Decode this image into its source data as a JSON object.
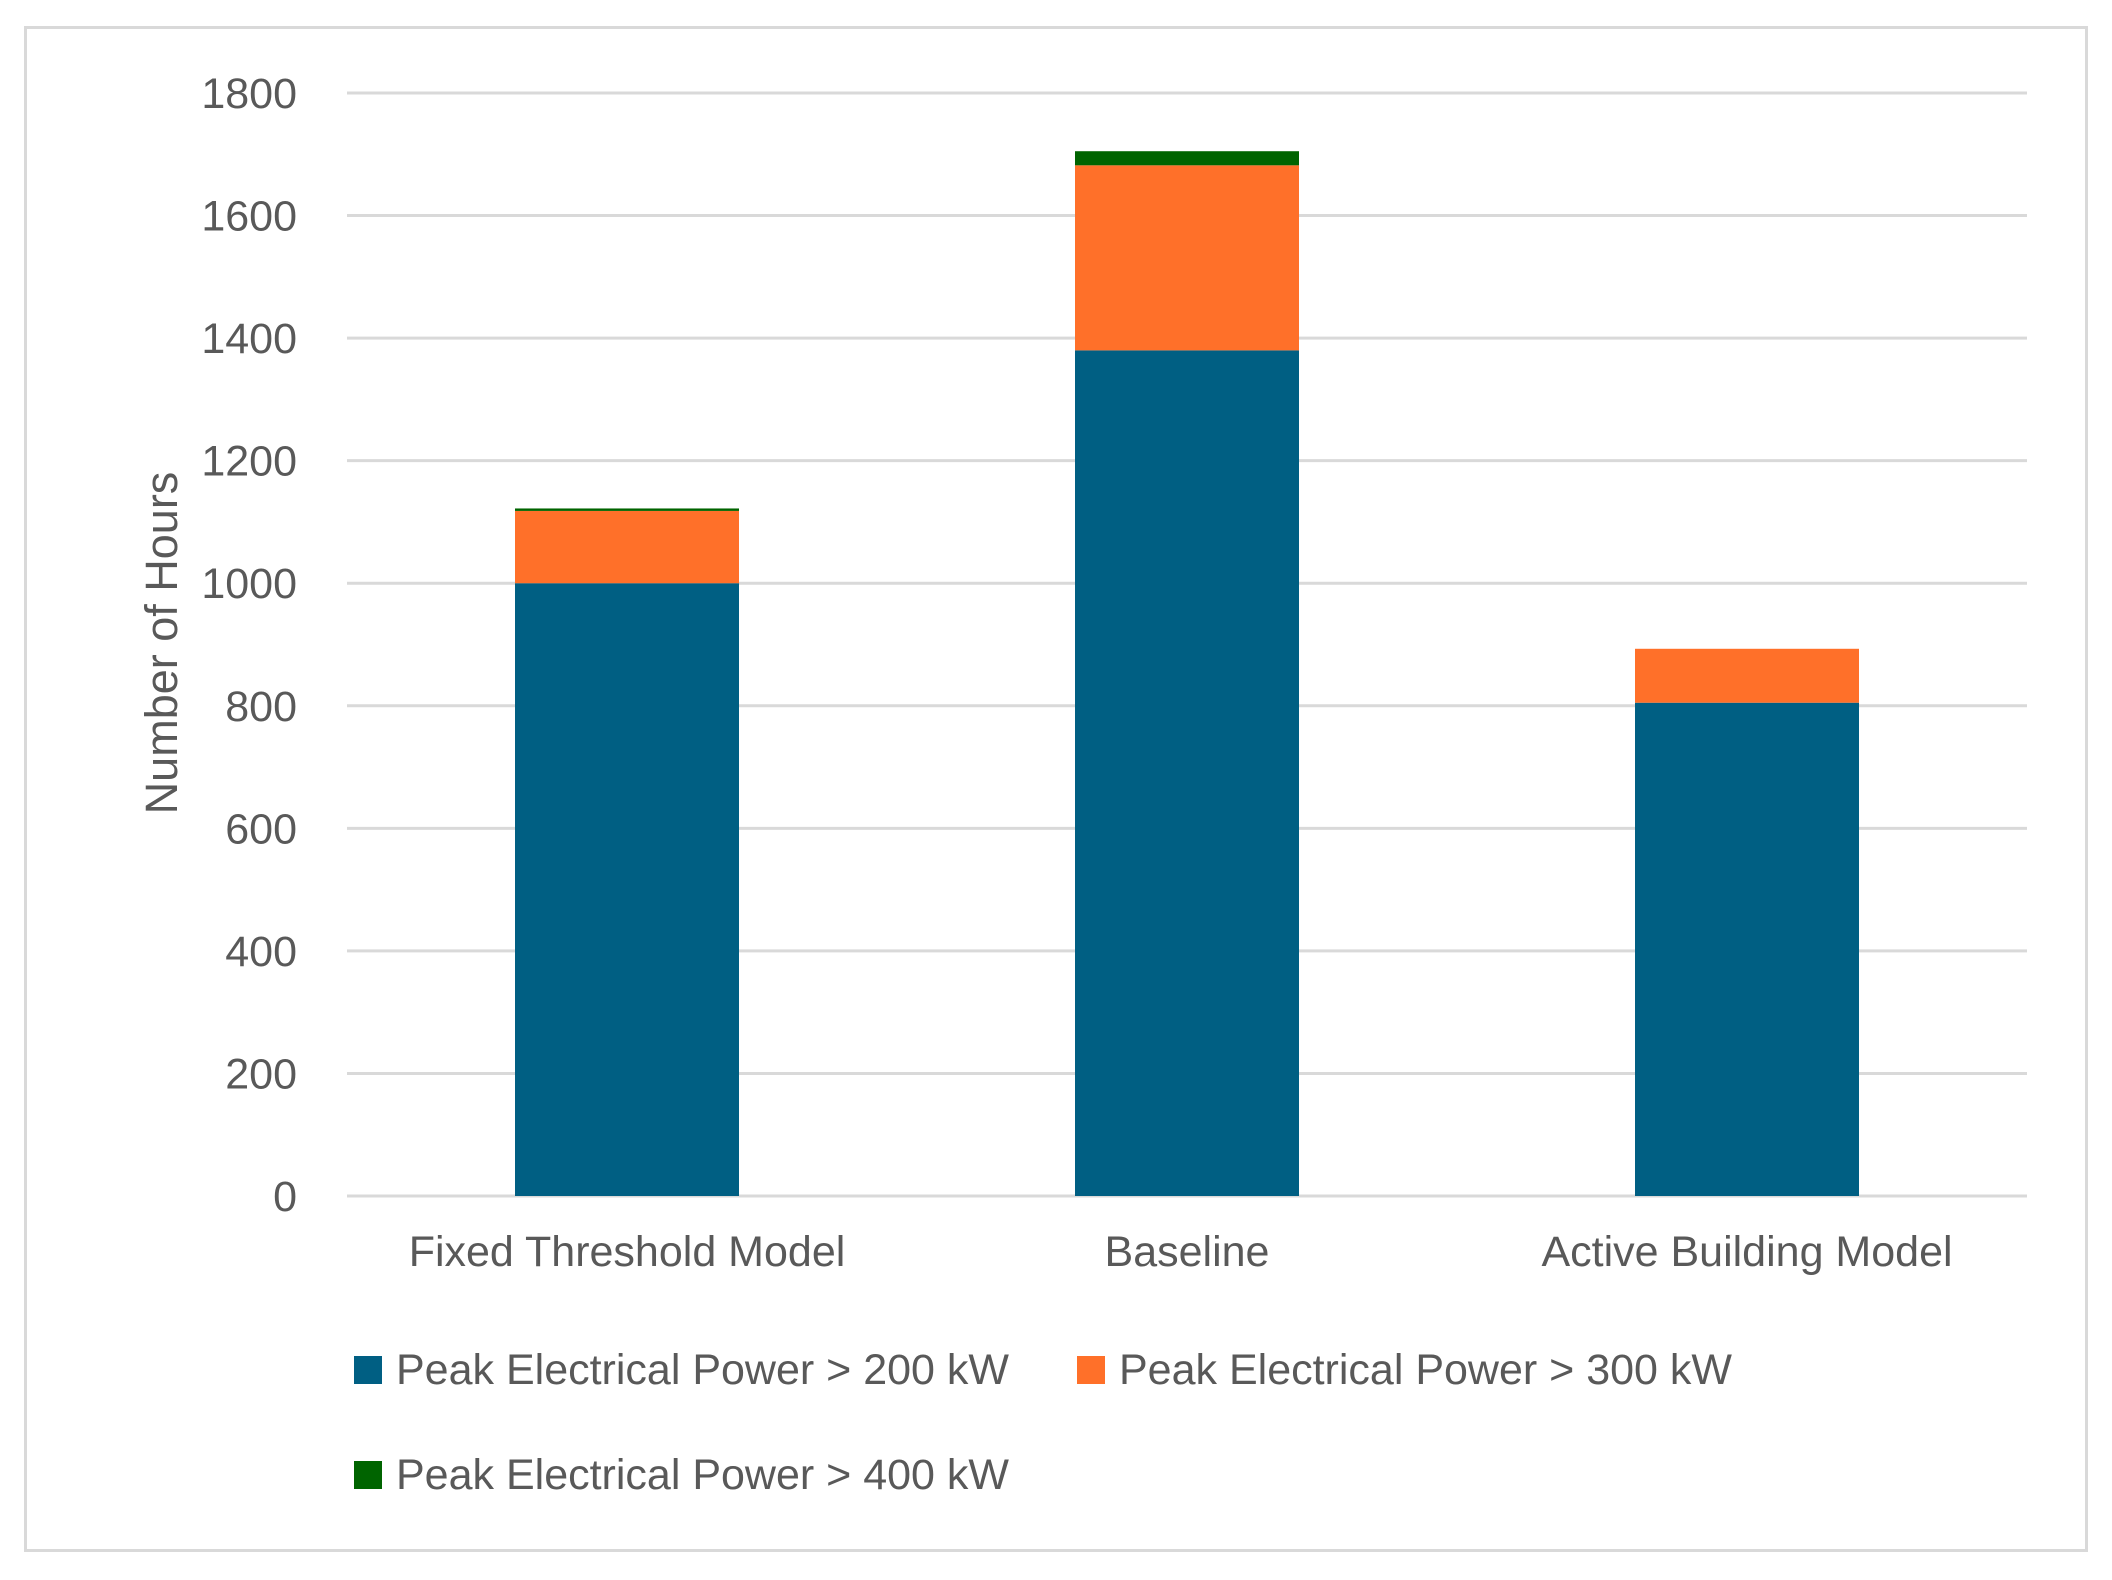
{
  "chart_data": {
    "type": "bar",
    "stacked": true,
    "title": "",
    "xlabel": "",
    "ylabel": "Number of Hours",
    "ylim": [
      0,
      1800
    ],
    "yticks": [
      0,
      200,
      400,
      600,
      800,
      1000,
      1200,
      1400,
      1600,
      1800
    ],
    "grid": true,
    "legend_position": "bottom",
    "categories": [
      "Fixed Threshold Model",
      "Baseline",
      "Active Building Model"
    ],
    "series": [
      {
        "name": "Peak Electrical Power > 200 kW",
        "color": "#005F83",
        "values": [
          1000,
          1380,
          805
        ]
      },
      {
        "name": "Peak Electrical Power > 300 kW",
        "color": "#FF7029",
        "values": [
          118,
          302,
          88
        ]
      },
      {
        "name": "Peak Electrical Power > 400 kW",
        "color": "#006400",
        "values": [
          4,
          23,
          0
        ]
      }
    ],
    "colors": {
      "grid": "#d9d9d9",
      "text": "#595959",
      "frame": "#d9d9d9"
    }
  }
}
